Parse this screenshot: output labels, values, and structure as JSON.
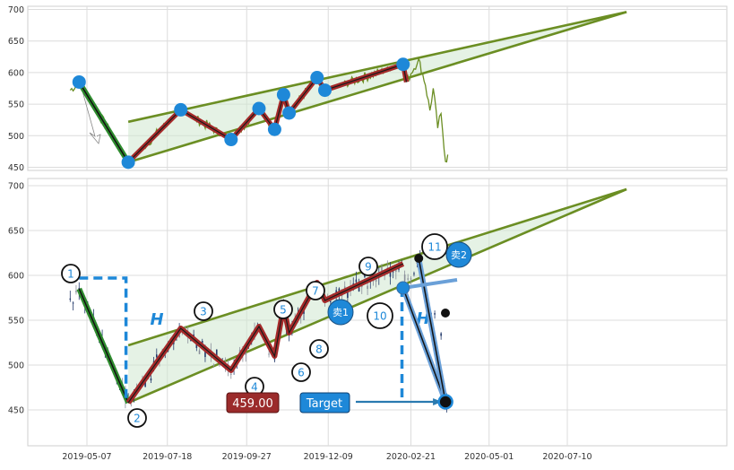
{
  "chart_data": [
    {
      "type": "line",
      "panel": "top",
      "title": "",
      "ylim": [
        445,
        705
      ],
      "yticks": [
        "450",
        "500",
        "550",
        "600",
        "650",
        "700"
      ],
      "grid": true,
      "colors": {
        "price": "#6b8e23",
        "wedge_fill": "#cfe8d0",
        "zigzag": "#a52a2a",
        "pivot": "#1e88d8",
        "drop": "#2e8b2e"
      },
      "pivots": [
        {
          "date": "2019-04-30",
          "value": 585
        },
        {
          "date": "2019-06-13",
          "value": 458
        },
        {
          "date": "2019-07-30",
          "value": 541
        },
        {
          "date": "2019-09-13",
          "value": 494
        },
        {
          "date": "2019-10-08",
          "value": 543
        },
        {
          "date": "2019-10-22",
          "value": 510
        },
        {
          "date": "2019-10-30",
          "value": 565
        },
        {
          "date": "2019-11-04",
          "value": 536
        },
        {
          "date": "2019-11-29",
          "value": 592
        },
        {
          "date": "2019-12-06",
          "value": 572
        },
        {
          "date": "2020-02-14",
          "value": 613
        }
      ],
      "wedge_upper": [
        {
          "date": "2019-06-13",
          "value": 522
        },
        {
          "date": "2020-09-01",
          "value": 696
        }
      ],
      "wedge_lower": [
        {
          "date": "2019-06-13",
          "value": 458
        },
        {
          "date": "2020-09-01",
          "value": 696
        }
      ]
    },
    {
      "type": "candlestick",
      "panel": "bottom",
      "title": "",
      "ylim": [
        410,
        708
      ],
      "yticks": [
        "450",
        "500",
        "550",
        "600",
        "650",
        "700"
      ],
      "xticks": [
        "2019-05-07",
        "2019-07-18",
        "2019-09-27",
        "2019-12-09",
        "2020-02-21",
        "2020-05-01",
        "2020-07-10"
      ],
      "grid": true,
      "pivot_labels": [
        "1",
        "2",
        "3",
        "4",
        "5",
        "6",
        "7",
        "8",
        "9",
        "10",
        "11"
      ],
      "sell_labels": [
        "卖1",
        "卖2"
      ],
      "height_label": "H",
      "price_label": "459.00",
      "target_label": "Target",
      "target_value": 459.0,
      "breakout": {
        "date": "2020-02-14",
        "value": 586
      },
      "target_point": {
        "date": "2020-03-23",
        "value": 459
      }
    }
  ]
}
